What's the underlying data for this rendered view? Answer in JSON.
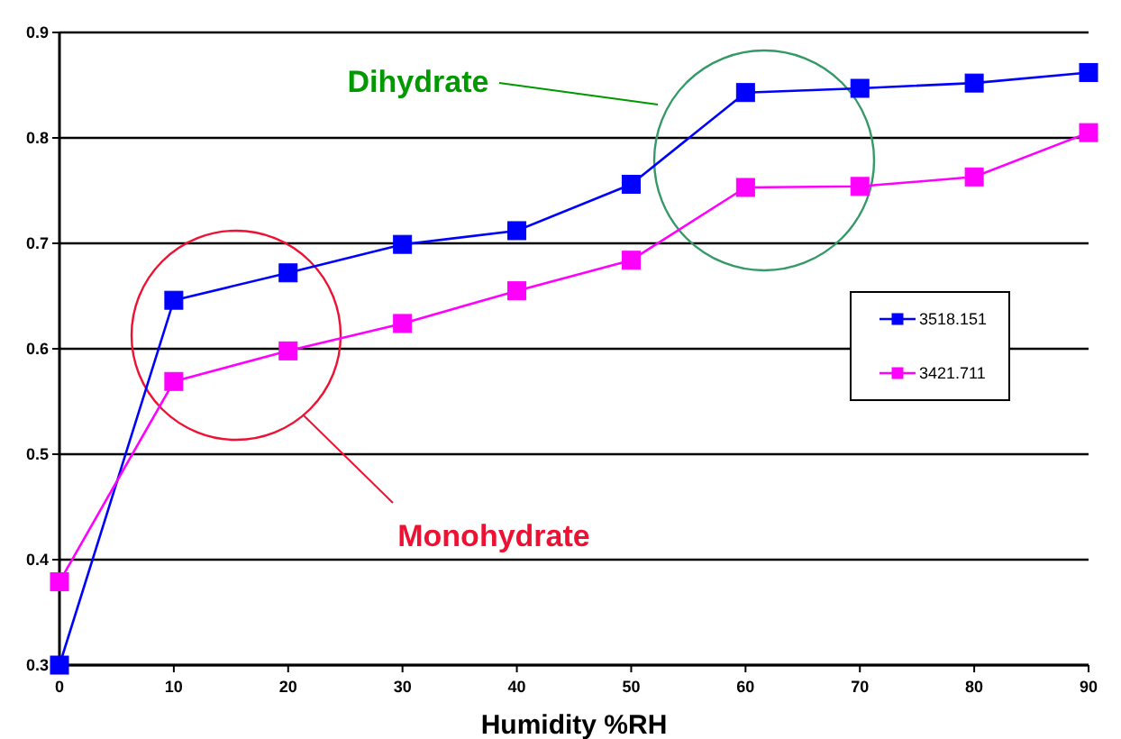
{
  "chart_data": {
    "type": "line",
    "xlabel": "Humidity %RH",
    "x": [
      0,
      10,
      20,
      30,
      40,
      50,
      60,
      70,
      80,
      90
    ],
    "series": [
      {
        "name": "3518.151",
        "color": "#0000ff",
        "values": [
          0.3,
          0.646,
          0.672,
          0.699,
          0.712,
          0.756,
          0.843,
          0.847,
          0.852,
          0.862
        ]
      },
      {
        "name": "3421.711",
        "color": "#ff00ff",
        "values": [
          0.379,
          0.569,
          0.598,
          0.624,
          0.655,
          0.684,
          0.753,
          0.754,
          0.763,
          0.805
        ]
      }
    ],
    "xlim": [
      0,
      90
    ],
    "xticks": [
      0,
      10,
      20,
      30,
      40,
      50,
      60,
      70,
      80,
      90
    ],
    "ylim": [
      0.3,
      0.9
    ],
    "yticks": [
      0.3,
      0.4,
      0.5,
      0.6,
      0.7,
      0.8,
      0.9
    ],
    "grid": "y",
    "legend": "right",
    "marker": "square",
    "line_style": "solid",
    "annotations": [
      "Dihydrate",
      "Monohydrate"
    ]
  }
}
